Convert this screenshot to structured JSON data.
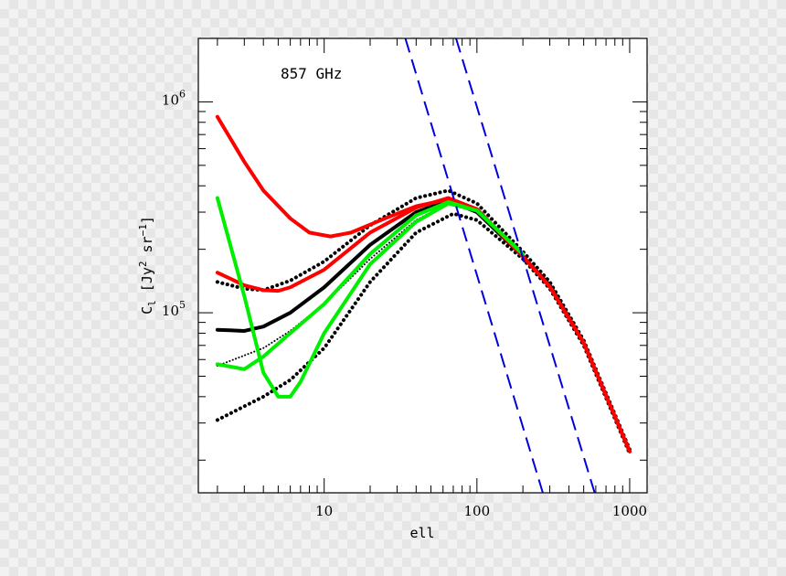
{
  "chart_data": {
    "type": "line",
    "title": "",
    "annotation": "857 GHz",
    "xlabel": "ell",
    "ylabel_main": "C",
    "ylabel_sub": "l",
    "ylabel_open": "[Jy",
    "ylabel_sup1": "2",
    "ylabel_mid": "sr",
    "ylabel_sup2": "−1",
    "ylabel_close": "]",
    "xscale": "log",
    "yscale": "log",
    "xlim": [
      1.5,
      1300
    ],
    "ylim": [
      14000,
      2000000
    ],
    "grid": false,
    "legend": "none",
    "x_ticks": [
      {
        "value": 10,
        "label": "10"
      },
      {
        "value": 100,
        "label": "100"
      },
      {
        "value": 1000,
        "label": "1000"
      }
    ],
    "y_ticks": [
      {
        "value": 100000,
        "base": "10",
        "exp": "5"
      },
      {
        "value": 1000000,
        "base": "10",
        "exp": "6"
      }
    ],
    "series": [
      {
        "color": "#000000",
        "style": "solid",
        "width": 4,
        "x": [
          2,
          3,
          4,
          6,
          10,
          20,
          40,
          65,
          100,
          200,
          300,
          500,
          1000
        ],
        "y": [
          83000,
          82000,
          86000,
          100000,
          132000,
          210000,
          300000,
          340000,
          300000,
          185000,
          135000,
          72000,
          22000
        ]
      },
      {
        "color": "#000000",
        "style": "dotted",
        "width": 4,
        "x": [
          2,
          3,
          4,
          6,
          10,
          20,
          40,
          65,
          100,
          200,
          300,
          500,
          1000
        ],
        "y": [
          140000,
          130000,
          128000,
          142000,
          175000,
          260000,
          350000,
          380000,
          330000,
          195000,
          140000,
          74000,
          22500
        ]
      },
      {
        "color": "#000000",
        "style": "dotted",
        "width": 2,
        "x": [
          2,
          4,
          6,
          10,
          20,
          40,
          65,
          100,
          200
        ],
        "y": [
          56000,
          68000,
          82000,
          110000,
          180000,
          275000,
          330000,
          300000,
          190000
        ]
      },
      {
        "color": "#000000",
        "style": "dotted",
        "width": 4,
        "x": [
          2,
          3,
          4,
          6,
          10,
          20,
          40,
          70,
          100,
          200,
          300,
          500,
          1000
        ],
        "y": [
          31000,
          36000,
          40000,
          48000,
          68000,
          140000,
          240000,
          295000,
          275000,
          180000,
          130000,
          70000,
          21500
        ]
      },
      {
        "color": "#ff0000",
        "style": "solid",
        "width": 4,
        "x": [
          2,
          3,
          4,
          6,
          8,
          11,
          15,
          25,
          40,
          65,
          100,
          200,
          300,
          500,
          1000
        ],
        "y": [
          850000,
          520000,
          380000,
          280000,
          240000,
          230000,
          240000,
          280000,
          320000,
          345000,
          310000,
          185000,
          133000,
          72000,
          22000
        ]
      },
      {
        "color": "#ff0000",
        "style": "solid",
        "width": 4,
        "x": [
          2,
          3,
          4,
          5,
          6,
          10,
          20,
          40,
          65,
          100,
          200,
          300,
          500,
          1000
        ],
        "y": [
          155000,
          135000,
          128000,
          127000,
          132000,
          160000,
          240000,
          315000,
          350000,
          310000,
          185000,
          133000,
          72000,
          22000
        ]
      },
      {
        "color": "#00ee00",
        "style": "solid",
        "width": 4,
        "x": [
          2,
          3,
          4,
          5,
          6,
          7,
          10,
          20,
          40,
          65,
          100,
          200
        ],
        "y": [
          350000,
          120000,
          52000,
          40000,
          40000,
          47000,
          80000,
          170000,
          270000,
          330000,
          305000,
          190000
        ]
      },
      {
        "color": "#00ee00",
        "style": "solid",
        "width": 4,
        "x": [
          2,
          3,
          4,
          6,
          10,
          20,
          40,
          65,
          100,
          200
        ],
        "y": [
          57000,
          54000,
          62000,
          80000,
          110000,
          190000,
          290000,
          335000,
          305000,
          190000
        ]
      },
      {
        "color": "#0000dd",
        "style": "dashed",
        "width": 2,
        "x": [
          34,
          270
        ],
        "y": [
          2000000,
          14000
        ]
      },
      {
        "color": "#0000dd",
        "style": "dashed",
        "width": 2,
        "x": [
          73,
          590
        ],
        "y": [
          2000000,
          14000
        ]
      }
    ]
  }
}
